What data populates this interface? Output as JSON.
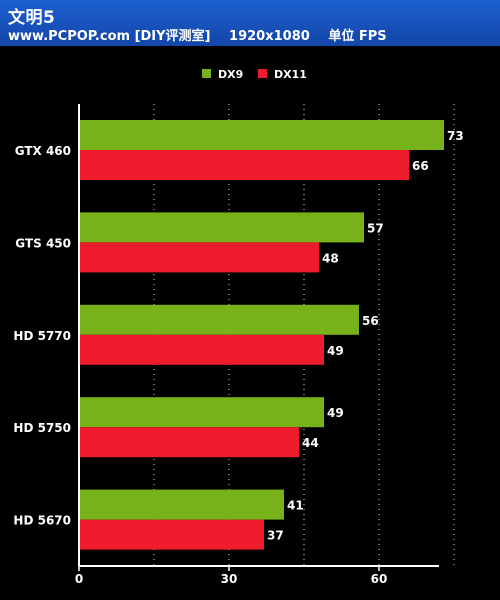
{
  "header": {
    "title": "文明5",
    "site": "www.PCPOP.com [DIY评测室]",
    "resolution": "1920x1080",
    "unit": "单位 FPS"
  },
  "colors": {
    "background": "#000000",
    "header_bg": "#1a56c4",
    "dx9": "#77b21b",
    "dx11": "#ee1c2c",
    "grid": "#ffffff",
    "text": "#ffffff"
  },
  "chart_data": {
    "type": "bar",
    "orientation": "horizontal",
    "categories": [
      "GTX 460",
      "GTS 450",
      "HD 5770",
      "HD 5750",
      "HD 5670"
    ],
    "series": [
      {
        "name": "DX9",
        "values": [
          73,
          57,
          56,
          49,
          41
        ]
      },
      {
        "name": "DX11",
        "values": [
          66,
          48,
          49,
          44,
          37
        ]
      }
    ],
    "xlim": [
      0,
      72
    ],
    "xticks": [
      0,
      30,
      60
    ],
    "grid_values": [
      0,
      15,
      30,
      45,
      60,
      75
    ],
    "grid": true,
    "legend_position": "top-center",
    "data_labels": true
  }
}
